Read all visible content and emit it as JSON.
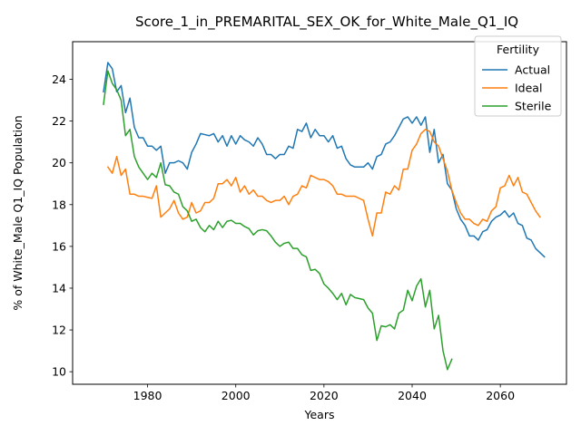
{
  "chart_data": {
    "type": "line",
    "title": "Score_1_in_PREMARITAL_SEX_OK_for_White_Male_Q1_IQ",
    "xlabel": "Years",
    "ylabel": "% of White_Male Q1_IQ Population",
    "xlim": [
      1963,
      2075
    ],
    "ylim": [
      9.4,
      25.8
    ],
    "xticks": [
      1980,
      2000,
      2020,
      2040,
      2060
    ],
    "yticks": [
      10,
      12,
      14,
      16,
      18,
      20,
      22,
      24
    ],
    "grid": false,
    "legend": {
      "title": "Fertility",
      "placement": "top-right"
    },
    "series": [
      {
        "name": "Actual",
        "color": "#1f77b4",
        "points": [
          [
            1970,
            23.4
          ],
          [
            1971,
            24.8
          ],
          [
            1972,
            24.5
          ],
          [
            1973,
            23.4
          ],
          [
            1974,
            23.7
          ],
          [
            1975,
            22.4
          ],
          [
            1976,
            23.1
          ],
          [
            1977,
            21.7
          ],
          [
            1978,
            21.2
          ],
          [
            1979,
            21.2
          ],
          [
            1980,
            20.8
          ],
          [
            1981,
            20.8
          ],
          [
            1982,
            20.6
          ],
          [
            1983,
            20.8
          ],
          [
            1984,
            19.5
          ],
          [
            1985,
            20.0
          ],
          [
            1986,
            20.0
          ],
          [
            1987,
            20.1
          ],
          [
            1988,
            20.0
          ],
          [
            1989,
            19.7
          ],
          [
            1990,
            20.5
          ],
          [
            1991,
            20.9
          ],
          [
            1992,
            21.4
          ],
          [
            1993,
            21.35
          ],
          [
            1994,
            21.3
          ],
          [
            1995,
            21.4
          ],
          [
            1996,
            21.0
          ],
          [
            1997,
            21.3
          ],
          [
            1998,
            20.8
          ],
          [
            1999,
            21.3
          ],
          [
            2000,
            20.9
          ],
          [
            2001,
            21.3
          ],
          [
            2002,
            21.1
          ],
          [
            2003,
            21.0
          ],
          [
            2004,
            20.8
          ],
          [
            2005,
            21.2
          ],
          [
            2006,
            20.9
          ],
          [
            2007,
            20.4
          ],
          [
            2008,
            20.4
          ],
          [
            2009,
            20.2
          ],
          [
            2010,
            20.4
          ],
          [
            2011,
            20.4
          ],
          [
            2012,
            20.8
          ],
          [
            2013,
            20.7
          ],
          [
            2014,
            21.6
          ],
          [
            2015,
            21.5
          ],
          [
            2016,
            21.9
          ],
          [
            2017,
            21.2
          ],
          [
            2018,
            21.6
          ],
          [
            2019,
            21.3
          ],
          [
            2020,
            21.3
          ],
          [
            2021,
            21.0
          ],
          [
            2022,
            21.3
          ],
          [
            2023,
            20.7
          ],
          [
            2024,
            20.8
          ],
          [
            2025,
            20.2
          ],
          [
            2026,
            19.9
          ],
          [
            2027,
            19.8
          ],
          [
            2028,
            19.8
          ],
          [
            2029,
            19.8
          ],
          [
            2030,
            20.0
          ],
          [
            2031,
            19.7
          ],
          [
            2032,
            20.3
          ],
          [
            2033,
            20.4
          ],
          [
            2034,
            20.9
          ],
          [
            2035,
            21.0
          ],
          [
            2036,
            21.3
          ],
          [
            2037,
            21.7
          ],
          [
            2038,
            22.1
          ],
          [
            2039,
            22.2
          ],
          [
            2040,
            21.9
          ],
          [
            2041,
            22.2
          ],
          [
            2042,
            21.8
          ],
          [
            2043,
            22.2
          ],
          [
            2044,
            20.5
          ],
          [
            2045,
            21.6
          ],
          [
            2046,
            20.0
          ],
          [
            2047,
            20.4
          ],
          [
            2048,
            19.0
          ],
          [
            2049,
            18.7
          ],
          [
            2050,
            17.8
          ],
          [
            2051,
            17.3
          ],
          [
            2052,
            17.0
          ],
          [
            2053,
            16.5
          ],
          [
            2054,
            16.5
          ],
          [
            2055,
            16.3
          ],
          [
            2056,
            16.7
          ],
          [
            2057,
            16.8
          ],
          [
            2058,
            17.2
          ],
          [
            2059,
            17.4
          ],
          [
            2060,
            17.5
          ],
          [
            2061,
            17.7
          ],
          [
            2062,
            17.4
          ],
          [
            2063,
            17.6
          ],
          [
            2064,
            17.1
          ],
          [
            2065,
            17.0
          ],
          [
            2066,
            16.4
          ],
          [
            2067,
            16.3
          ],
          [
            2068,
            15.9
          ],
          [
            2069,
            15.7
          ],
          [
            2070,
            15.5
          ]
        ]
      },
      {
        "name": "Ideal",
        "color": "#ff7f0e",
        "points": [
          [
            1971,
            19.8
          ],
          [
            1972,
            19.5
          ],
          [
            1973,
            20.3
          ],
          [
            1974,
            19.4
          ],
          [
            1975,
            19.7
          ],
          [
            1976,
            18.5
          ],
          [
            1977,
            18.5
          ],
          [
            1978,
            18.4
          ],
          [
            1979,
            18.4
          ],
          [
            1980,
            18.35
          ],
          [
            1981,
            18.3
          ],
          [
            1982,
            18.9
          ],
          [
            1983,
            17.4
          ],
          [
            1984,
            17.6
          ],
          [
            1985,
            17.8
          ],
          [
            1986,
            18.2
          ],
          [
            1987,
            17.6
          ],
          [
            1988,
            17.3
          ],
          [
            1989,
            17.4
          ],
          [
            1990,
            18.1
          ],
          [
            1991,
            17.6
          ],
          [
            1992,
            17.7
          ],
          [
            1993,
            18.1
          ],
          [
            1994,
            18.1
          ],
          [
            1995,
            18.3
          ],
          [
            1996,
            19.0
          ],
          [
            1997,
            19.0
          ],
          [
            1998,
            19.2
          ],
          [
            1999,
            18.9
          ],
          [
            2000,
            19.3
          ],
          [
            2001,
            18.6
          ],
          [
            2002,
            18.9
          ],
          [
            2003,
            18.5
          ],
          [
            2004,
            18.7
          ],
          [
            2005,
            18.4
          ],
          [
            2006,
            18.4
          ],
          [
            2007,
            18.2
          ],
          [
            2008,
            18.1
          ],
          [
            2009,
            18.2
          ],
          [
            2010,
            18.2
          ],
          [
            2011,
            18.4
          ],
          [
            2012,
            18.0
          ],
          [
            2013,
            18.4
          ],
          [
            2014,
            18.5
          ],
          [
            2015,
            18.9
          ],
          [
            2016,
            18.8
          ],
          [
            2017,
            19.4
          ],
          [
            2018,
            19.3
          ],
          [
            2019,
            19.2
          ],
          [
            2020,
            19.2
          ],
          [
            2021,
            19.1
          ],
          [
            2022,
            18.9
          ],
          [
            2023,
            18.5
          ],
          [
            2024,
            18.5
          ],
          [
            2025,
            18.4
          ],
          [
            2026,
            18.4
          ],
          [
            2027,
            18.4
          ],
          [
            2028,
            18.3
          ],
          [
            2029,
            18.2
          ],
          [
            2030,
            17.3
          ],
          [
            2031,
            16.5
          ],
          [
            2032,
            17.6
          ],
          [
            2033,
            17.6
          ],
          [
            2034,
            18.6
          ],
          [
            2035,
            18.5
          ],
          [
            2036,
            18.9
          ],
          [
            2037,
            18.7
          ],
          [
            2038,
            19.7
          ],
          [
            2039,
            19.7
          ],
          [
            2040,
            20.6
          ],
          [
            2041,
            20.9
          ],
          [
            2042,
            21.4
          ],
          [
            2043,
            21.6
          ],
          [
            2044,
            21.5
          ],
          [
            2045,
            21.0
          ],
          [
            2046,
            20.8
          ],
          [
            2047,
            20.2
          ],
          [
            2048,
            19.6
          ],
          [
            2049,
            18.7
          ],
          [
            2050,
            18.1
          ],
          [
            2051,
            17.6
          ],
          [
            2052,
            17.3
          ],
          [
            2053,
            17.3
          ],
          [
            2054,
            17.1
          ],
          [
            2055,
            17.0
          ],
          [
            2056,
            17.3
          ],
          [
            2057,
            17.2
          ],
          [
            2058,
            17.7
          ],
          [
            2059,
            17.9
          ],
          [
            2060,
            18.8
          ],
          [
            2061,
            18.9
          ],
          [
            2062,
            19.4
          ],
          [
            2063,
            18.9
          ],
          [
            2064,
            19.3
          ],
          [
            2065,
            18.6
          ],
          [
            2066,
            18.5
          ],
          [
            2067,
            18.1
          ],
          [
            2068,
            17.7
          ],
          [
            2069,
            17.4
          ]
        ]
      },
      {
        "name": "Sterile",
        "color": "#2ca02c",
        "points": [
          [
            1970,
            22.8
          ],
          [
            1971,
            24.4
          ],
          [
            1972,
            23.8
          ],
          [
            1973,
            23.5
          ],
          [
            1974,
            23.0
          ],
          [
            1975,
            21.3
          ],
          [
            1976,
            21.6
          ],
          [
            1977,
            20.3
          ],
          [
            1978,
            19.8
          ],
          [
            1979,
            19.5
          ],
          [
            1980,
            19.2
          ],
          [
            1981,
            19.5
          ],
          [
            1982,
            19.3
          ],
          [
            1983,
            20.0
          ],
          [
            1984,
            18.95
          ],
          [
            1985,
            18.9
          ],
          [
            1986,
            18.6
          ],
          [
            1987,
            18.5
          ],
          [
            1988,
            17.9
          ],
          [
            1989,
            17.7
          ],
          [
            1990,
            17.2
          ],
          [
            1991,
            17.3
          ],
          [
            1992,
            16.9
          ],
          [
            1993,
            16.7
          ],
          [
            1994,
            17.0
          ],
          [
            1995,
            16.8
          ],
          [
            1996,
            17.2
          ],
          [
            1997,
            16.9
          ],
          [
            1998,
            17.2
          ],
          [
            1999,
            17.25
          ],
          [
            2000,
            17.1
          ],
          [
            2001,
            17.1
          ],
          [
            2002,
            16.95
          ],
          [
            2003,
            16.85
          ],
          [
            2004,
            16.55
          ],
          [
            2005,
            16.75
          ],
          [
            2006,
            16.8
          ],
          [
            2007,
            16.75
          ],
          [
            2008,
            16.5
          ],
          [
            2009,
            16.2
          ],
          [
            2010,
            16.0
          ],
          [
            2011,
            16.15
          ],
          [
            2012,
            16.2
          ],
          [
            2013,
            15.9
          ],
          [
            2014,
            15.9
          ],
          [
            2015,
            15.6
          ],
          [
            2016,
            15.5
          ],
          [
            2017,
            14.85
          ],
          [
            2018,
            14.9
          ],
          [
            2019,
            14.7
          ],
          [
            2020,
            14.2
          ],
          [
            2021,
            14.0
          ],
          [
            2022,
            13.75
          ],
          [
            2023,
            13.45
          ],
          [
            2024,
            13.75
          ],
          [
            2025,
            13.2
          ],
          [
            2026,
            13.7
          ],
          [
            2027,
            13.55
          ],
          [
            2028,
            13.5
          ],
          [
            2029,
            13.45
          ],
          [
            2030,
            13.05
          ],
          [
            2031,
            12.8
          ],
          [
            2032,
            11.5
          ],
          [
            2033,
            12.2
          ],
          [
            2034,
            12.15
          ],
          [
            2035,
            12.25
          ],
          [
            2036,
            12.05
          ],
          [
            2037,
            12.8
          ],
          [
            2038,
            12.95
          ],
          [
            2039,
            13.9
          ],
          [
            2040,
            13.4
          ],
          [
            2041,
            14.1
          ],
          [
            2042,
            14.45
          ],
          [
            2043,
            13.1
          ],
          [
            2044,
            13.9
          ],
          [
            2045,
            12.05
          ],
          [
            2046,
            12.7
          ],
          [
            2047,
            11.0
          ],
          [
            2048,
            10.1
          ],
          [
            2049,
            10.6
          ]
        ]
      }
    ]
  }
}
